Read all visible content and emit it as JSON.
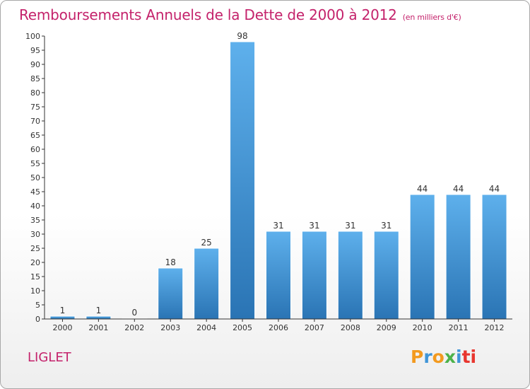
{
  "chart_data": {
    "type": "bar",
    "title": "Remboursements Annuels de la Dette de 2000 à 2012",
    "subtitle": "(en milliers d'€)",
    "categories": [
      "2000",
      "2001",
      "2002",
      "2003",
      "2004",
      "2005",
      "2006",
      "2007",
      "2008",
      "2009",
      "2010",
      "2011",
      "2012"
    ],
    "values": [
      1,
      1,
      0,
      18,
      25,
      98,
      31,
      31,
      31,
      31,
      44,
      44,
      44
    ],
    "ylim": [
      0,
      100
    ],
    "yticks": [
      0,
      5,
      10,
      15,
      20,
      25,
      30,
      35,
      40,
      45,
      50,
      55,
      60,
      65,
      70,
      75,
      80,
      85,
      90,
      95,
      100
    ],
    "xlabel": "",
    "ylabel": "",
    "grid": false,
    "bar_color": "#3d8fd4",
    "bar_color_light": "#5eb0ec",
    "bar_color_dark": "#2a74b4",
    "label_color": "#333333"
  },
  "commune": "LIGLET",
  "logo": {
    "letters": [
      "P",
      "r",
      "o",
      "x",
      "i",
      "t",
      "i"
    ],
    "colors": [
      "#f39a1f",
      "#3f95d8",
      "#f39a1f",
      "#4cb24a",
      "#3f95d8",
      "#e8362f",
      "#e8362f"
    ]
  },
  "accent_color": "#c4226b"
}
